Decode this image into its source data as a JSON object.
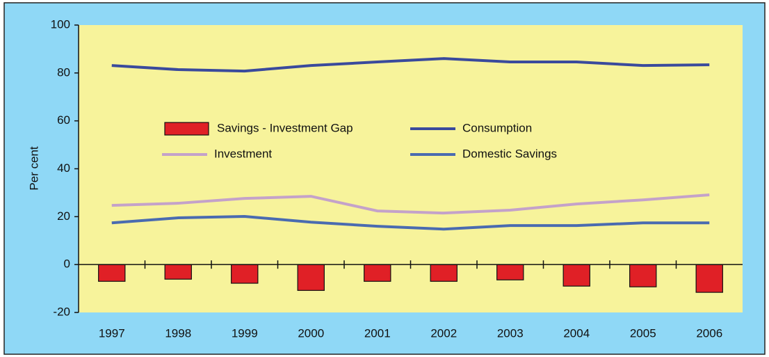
{
  "chart_data": {
    "type": "bar",
    "y_label": "Per cent",
    "categories": [
      "1997",
      "1998",
      "1999",
      "2000",
      "2001",
      "2002",
      "2003",
      "2004",
      "2005",
      "2006"
    ],
    "series": [
      {
        "name": "Savings - Investment Gap",
        "type": "bar",
        "color": "#e02026",
        "values": [
          -7.0,
          -6.1,
          -7.8,
          -10.8,
          -7.0,
          -7.0,
          -6.4,
          -9.0,
          -9.3,
          -11.6
        ]
      },
      {
        "name": "Consumption",
        "type": "line",
        "color": "#3a4a9c",
        "values": [
          83.1,
          81.4,
          80.8,
          83.1,
          84.6,
          86.0,
          84.6,
          84.6,
          83.1,
          83.4
        ]
      },
      {
        "name": "Investment",
        "type": "line",
        "color": "#c4a2c9",
        "values": [
          24.7,
          25.6,
          27.6,
          28.5,
          22.4,
          21.5,
          22.7,
          25.3,
          27.0,
          29.1
        ]
      },
      {
        "name": "Domestic Savings",
        "type": "line",
        "color": "#4a6bb0",
        "values": [
          17.4,
          19.5,
          20.1,
          17.7,
          16.0,
          14.8,
          16.3,
          16.3,
          17.4,
          17.4
        ]
      }
    ],
    "ylim": [
      -20,
      100
    ],
    "yticks": [
      -20,
      0,
      20,
      40,
      60,
      80,
      100
    ]
  }
}
